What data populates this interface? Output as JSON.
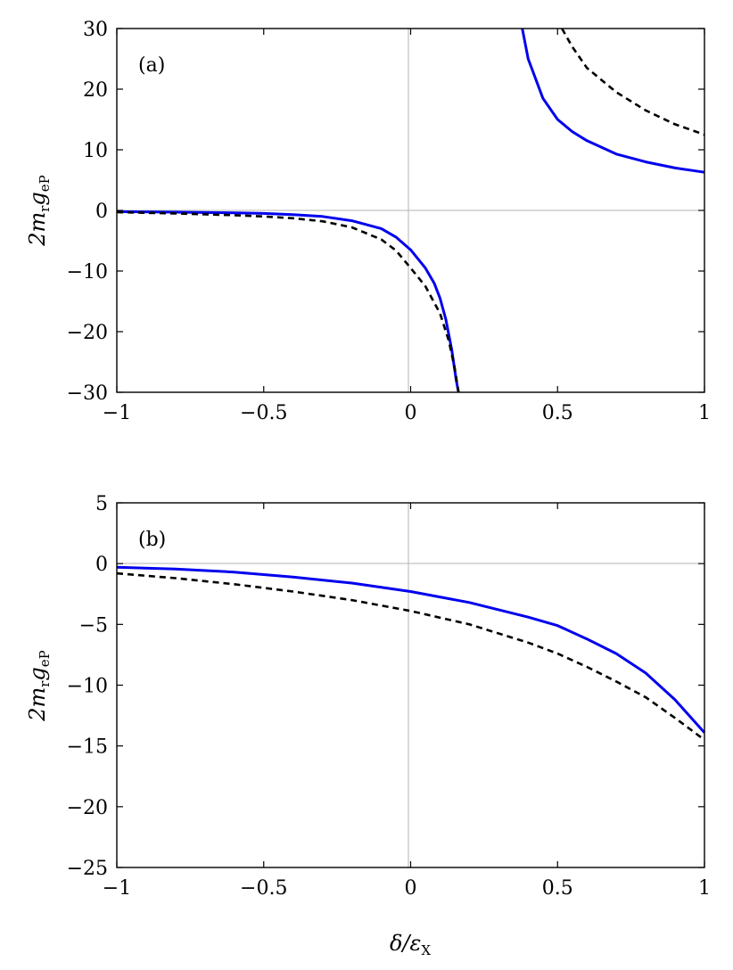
{
  "chart_data": [
    {
      "type": "line",
      "panel_label": "(a)",
      "ylabel": "2m_r g_eP",
      "xlabel": "",
      "xlim": [
        -1,
        1
      ],
      "ylim": [
        -30,
        30
      ],
      "xticks": [
        -1,
        -0.5,
        0,
        0.5,
        1
      ],
      "xtick_labels": [
        "−1",
        "−0.5",
        "0",
        "0.5",
        "1"
      ],
      "yticks": [
        30,
        20,
        10,
        0,
        -10,
        -20,
        -30
      ],
      "ytick_labels": [
        "30",
        "20",
        "10",
        "0",
        "−10",
        "−20",
        "−30"
      ],
      "reference_lines": {
        "x": 0,
        "y": 0
      },
      "grid": false,
      "series": [
        {
          "style": "solid",
          "color": "#0000ee",
          "segments": [
            [
              [
                -1.0,
                -0.2
              ],
              [
                -0.8,
                -0.3
              ],
              [
                -0.6,
                -0.4
              ],
              [
                -0.5,
                -0.5
              ],
              [
                -0.4,
                -0.7
              ],
              [
                -0.3,
                -1.0
              ],
              [
                -0.2,
                -1.7
              ],
              [
                -0.1,
                -3.0
              ],
              [
                -0.05,
                -4.4
              ],
              [
                0.0,
                -6.5
              ],
              [
                0.05,
                -9.5
              ],
              [
                0.08,
                -12.0
              ],
              [
                0.1,
                -14.5
              ],
              [
                0.12,
                -18.0
              ],
              [
                0.14,
                -23.0
              ],
              [
                0.155,
                -28.0
              ],
              [
                0.163,
                -30.0
              ]
            ],
            [
              [
                0.38,
                30.0
              ],
              [
                0.4,
                25.0
              ],
              [
                0.45,
                18.5
              ],
              [
                0.5,
                15.0
              ],
              [
                0.55,
                13.0
              ],
              [
                0.6,
                11.5
              ],
              [
                0.7,
                9.3
              ],
              [
                0.8,
                8.0
              ],
              [
                0.9,
                7.0
              ],
              [
                1.0,
                6.3
              ]
            ]
          ]
        },
        {
          "style": "dashed",
          "color": "#000000",
          "segments": [
            [
              [
                -1.0,
                -0.3
              ],
              [
                -0.8,
                -0.5
              ],
              [
                -0.6,
                -0.8
              ],
              [
                -0.5,
                -1.0
              ],
              [
                -0.4,
                -1.3
              ],
              [
                -0.3,
                -1.8
              ],
              [
                -0.2,
                -2.8
              ],
              [
                -0.1,
                -4.8
              ],
              [
                -0.05,
                -6.6
              ],
              [
                0.0,
                -9.5
              ],
              [
                0.05,
                -12.5
              ],
              [
                0.1,
                -17.0
              ],
              [
                0.13,
                -21.5
              ],
              [
                0.15,
                -26.0
              ],
              [
                0.163,
                -30.0
              ]
            ],
            [
              [
                0.515,
                30.0
              ],
              [
                0.55,
                27.0
              ],
              [
                0.6,
                23.5
              ],
              [
                0.7,
                19.5
              ],
              [
                0.8,
                16.5
              ],
              [
                0.9,
                14.2
              ],
              [
                1.0,
                12.5
              ]
            ]
          ]
        }
      ]
    },
    {
      "type": "line",
      "panel_label": "(b)",
      "ylabel": "2m_r g_eP",
      "xlabel": "δ/ε_X",
      "xlim": [
        -1,
        1
      ],
      "ylim": [
        -25,
        5
      ],
      "xticks": [
        -1,
        -0.5,
        0,
        0.5,
        1
      ],
      "xtick_labels": [
        "−1",
        "−0.5",
        "0",
        "0.5",
        "1"
      ],
      "yticks": [
        5,
        0,
        -5,
        -10,
        -15,
        -20,
        -25
      ],
      "ytick_labels": [
        "5",
        "0",
        "−5",
        "−10",
        "−15",
        "−20",
        "−25"
      ],
      "reference_lines": {
        "x": 0,
        "y": 0
      },
      "grid": false,
      "series": [
        {
          "style": "solid",
          "color": "#0000ee",
          "segments": [
            [
              [
                -1.0,
                -0.3
              ],
              [
                -0.8,
                -0.45
              ],
              [
                -0.6,
                -0.7
              ],
              [
                -0.4,
                -1.1
              ],
              [
                -0.2,
                -1.6
              ],
              [
                0.0,
                -2.3
              ],
              [
                0.2,
                -3.2
              ],
              [
                0.4,
                -4.4
              ],
              [
                0.5,
                -5.1
              ],
              [
                0.6,
                -6.2
              ],
              [
                0.7,
                -7.4
              ],
              [
                0.8,
                -9.0
              ],
              [
                0.9,
                -11.2
              ],
              [
                1.0,
                -13.9
              ]
            ]
          ]
        },
        {
          "style": "dashed",
          "color": "#000000",
          "segments": [
            [
              [
                -1.0,
                -0.8
              ],
              [
                -0.8,
                -1.2
              ],
              [
                -0.6,
                -1.7
              ],
              [
                -0.4,
                -2.3
              ],
              [
                -0.2,
                -3.0
              ],
              [
                0.0,
                -3.9
              ],
              [
                0.2,
                -5.0
              ],
              [
                0.4,
                -6.5
              ],
              [
                0.5,
                -7.4
              ],
              [
                0.6,
                -8.5
              ],
              [
                0.7,
                -9.7
              ],
              [
                0.8,
                -11.0
              ],
              [
                0.9,
                -12.7
              ],
              [
                1.0,
                -14.5
              ]
            ]
          ]
        }
      ]
    }
  ]
}
